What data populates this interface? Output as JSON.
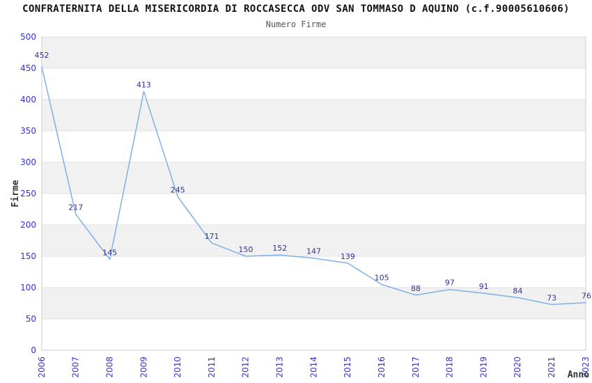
{
  "chart_data": {
    "type": "line",
    "title": "CONFRATERNITA DELLA MISERICORDIA DI ROCCASECCA ODV SAN TOMMASO D AQUINO (c.f.90005610606)",
    "subtitle": "Numero Firme",
    "xlabel": "Anno",
    "ylabel": "Firme",
    "categories": [
      "2006",
      "2007",
      "2008",
      "2009",
      "2010",
      "2011",
      "2012",
      "2013",
      "2014",
      "2015",
      "2016",
      "2017",
      "2018",
      "2019",
      "2020",
      "2021",
      "2023"
    ],
    "values": [
      452,
      217,
      145,
      413,
      245,
      171,
      150,
      152,
      147,
      139,
      105,
      88,
      97,
      91,
      84,
      73,
      76
    ],
    "ylim": [
      0,
      500
    ],
    "ytick_step": 50,
    "grid": "horizontal",
    "legend": "none",
    "band_fill": "alternating",
    "colors": {
      "line": "#7fb0e6",
      "tick_label": "#3333cc",
      "data_label": "#31318f",
      "band_gray": "#f1f1f1",
      "band_white": "#ffffff",
      "gridline": "#e0e0e0",
      "plot_border": "#cccccc",
      "title": "#111111",
      "subtitle": "#555555",
      "axis_title": "#333333"
    }
  }
}
